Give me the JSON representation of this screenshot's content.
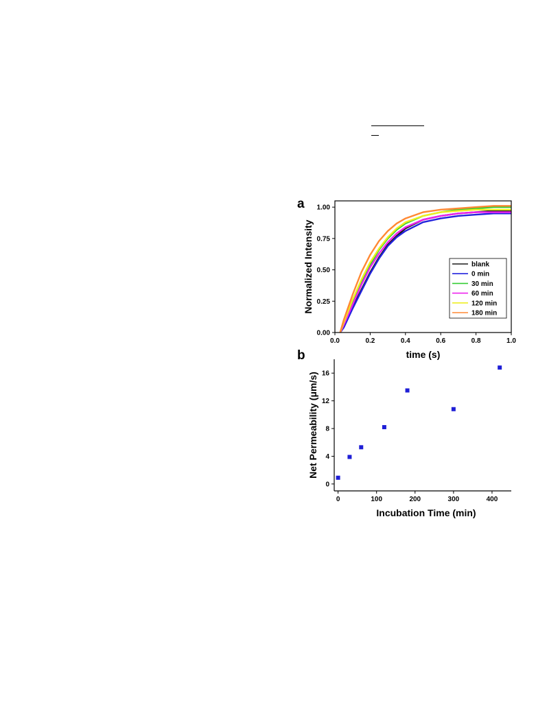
{
  "chart_data": [
    {
      "panel": "a",
      "type": "line",
      "title": "",
      "xlabel": "time (s)",
      "ylabel": "Normalized Intensity",
      "xlim": [
        0.0,
        1.0
      ],
      "ylim": [
        0.0,
        1.05
      ],
      "xticks": [
        "0.0",
        "0.2",
        "0.4",
        "0.6",
        "0.8",
        "1.0"
      ],
      "yticks": [
        "0.00",
        "0.25",
        "0.50",
        "0.75",
        "1.00"
      ],
      "legend_position": "bottom-right",
      "series": [
        {
          "name": "blank",
          "color": "#1a1a1a",
          "x": [
            0.03,
            0.05,
            0.1,
            0.15,
            0.2,
            0.25,
            0.3,
            0.35,
            0.4,
            0.5,
            0.6,
            0.7,
            0.8,
            0.9,
            1.0
          ],
          "y": [
            0.0,
            0.05,
            0.2,
            0.34,
            0.48,
            0.6,
            0.7,
            0.77,
            0.83,
            0.9,
            0.93,
            0.95,
            0.96,
            0.97,
            0.97
          ]
        },
        {
          "name": "0 min",
          "color": "#2222dd",
          "x": [
            0.03,
            0.05,
            0.1,
            0.15,
            0.2,
            0.25,
            0.3,
            0.35,
            0.4,
            0.5,
            0.6,
            0.7,
            0.8,
            0.9,
            1.0
          ],
          "y": [
            0.0,
            0.04,
            0.19,
            0.33,
            0.47,
            0.59,
            0.69,
            0.76,
            0.81,
            0.88,
            0.91,
            0.93,
            0.94,
            0.95,
            0.95
          ]
        },
        {
          "name": "30 min",
          "color": "#33cc33",
          "x": [
            0.03,
            0.05,
            0.1,
            0.15,
            0.2,
            0.25,
            0.3,
            0.35,
            0.4,
            0.5,
            0.6,
            0.7,
            0.8,
            0.9,
            1.0
          ],
          "y": [
            0.0,
            0.07,
            0.24,
            0.4,
            0.54,
            0.66,
            0.75,
            0.82,
            0.87,
            0.93,
            0.96,
            0.98,
            0.99,
            1.0,
            1.0
          ]
        },
        {
          "name": "60 min",
          "color": "#ee22ee",
          "x": [
            0.03,
            0.05,
            0.1,
            0.15,
            0.2,
            0.25,
            0.3,
            0.35,
            0.4,
            0.5,
            0.6,
            0.7,
            0.8,
            0.9,
            1.0
          ],
          "y": [
            0.0,
            0.06,
            0.22,
            0.38,
            0.52,
            0.63,
            0.72,
            0.79,
            0.84,
            0.9,
            0.93,
            0.95,
            0.96,
            0.96,
            0.96
          ]
        },
        {
          "name": "120 min",
          "color": "#eeee22",
          "x": [
            0.03,
            0.05,
            0.1,
            0.15,
            0.2,
            0.25,
            0.3,
            0.35,
            0.4,
            0.5,
            0.6,
            0.7,
            0.8,
            0.9,
            1.0
          ],
          "y": [
            0.0,
            0.08,
            0.26,
            0.42,
            0.56,
            0.67,
            0.76,
            0.83,
            0.88,
            0.93,
            0.96,
            0.97,
            0.98,
            0.98,
            0.98
          ]
        },
        {
          "name": "180 min",
          "color": "#ff8833",
          "x": [
            0.03,
            0.05,
            0.1,
            0.15,
            0.2,
            0.25,
            0.3,
            0.35,
            0.4,
            0.5,
            0.6,
            0.7,
            0.8,
            0.9,
            1.0
          ],
          "y": [
            0.0,
            0.1,
            0.3,
            0.48,
            0.62,
            0.73,
            0.81,
            0.87,
            0.91,
            0.96,
            0.98,
            0.99,
            1.0,
            1.01,
            1.01
          ]
        }
      ]
    },
    {
      "panel": "b",
      "type": "scatter",
      "title": "",
      "xlabel": "Incubation Time (min)",
      "ylabel": "Net Permeability (μm/s)",
      "xlim": [
        -10,
        450
      ],
      "ylim": [
        -1,
        18
      ],
      "xticks": [
        "0",
        "100",
        "200",
        "300",
        "400"
      ],
      "yticks": [
        "0",
        "4",
        "8",
        "12",
        "16"
      ],
      "marker_color": "#1f1fd6",
      "x": [
        0,
        30,
        60,
        120,
        180,
        300,
        420
      ],
      "y": [
        0.9,
        3.9,
        5.3,
        8.2,
        13.5,
        10.8,
        16.8
      ]
    }
  ]
}
